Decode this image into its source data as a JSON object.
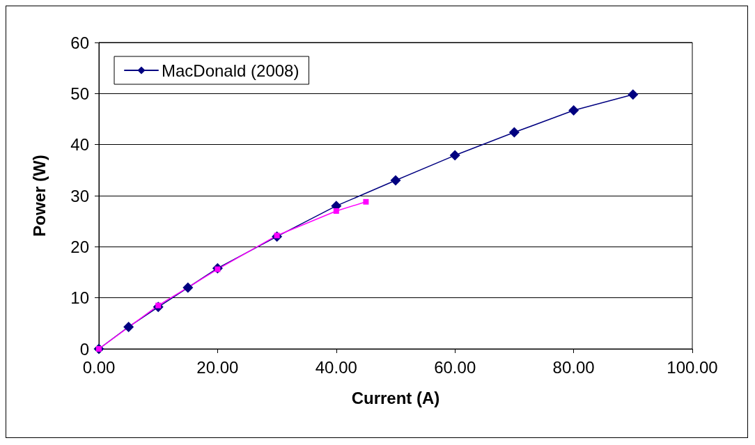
{
  "chart_data": {
    "type": "line",
    "xlabel": "Current (A)",
    "ylabel": "Power (W)",
    "xlim": [
      0,
      100
    ],
    "xticks": [
      {
        "value": 0,
        "label": "0.00"
      },
      {
        "value": 20,
        "label": "20.00"
      },
      {
        "value": 40,
        "label": "40.00"
      },
      {
        "value": 60,
        "label": "60.00"
      },
      {
        "value": 80,
        "label": "80.00"
      },
      {
        "value": 100,
        "label": "100.00"
      }
    ],
    "ylim": [
      0,
      60
    ],
    "yticks": [
      0,
      10,
      20,
      30,
      40,
      50,
      60
    ],
    "grid": "y",
    "legend": "top left",
    "series": [
      {
        "name": "MacDonald (2008)",
        "color": "#000080",
        "marker": "diamond",
        "x": [
          0,
          5,
          10,
          15,
          20,
          30,
          40,
          50,
          60,
          70,
          80,
          90
        ],
        "values": [
          0,
          4.3,
          8.2,
          12,
          15.8,
          22,
          28,
          33,
          37.9,
          42.4,
          46.7,
          49.8
        ]
      },
      {
        "color": "#ff00ff",
        "marker": "square",
        "x": [
          0,
          10,
          20,
          30,
          40,
          45
        ],
        "values": [
          0,
          8.5,
          15.6,
          22.2,
          27,
          28.8
        ]
      }
    ]
  }
}
